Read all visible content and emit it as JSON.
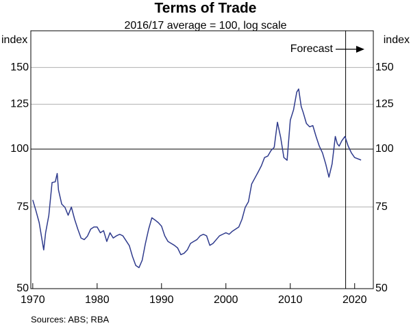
{
  "chart_data": {
    "type": "line",
    "title": "Terms of Trade",
    "subtitle": "2016/17 average = 100, log scale",
    "y_label": "index",
    "y2_label": "index",
    "source": "Sources: ABS; RBA",
    "annotation": "Forecast",
    "forecast_x": 2018.6,
    "reference_line": 100,
    "log_scale": true,
    "grid": true,
    "xlim": [
      1969.7,
      2022.9
    ],
    "xticks": [
      1970,
      1980,
      1990,
      2000,
      2010,
      2020
    ],
    "ylim": [
      50,
      180
    ],
    "yticks": [
      50,
      75,
      100,
      125,
      150
    ],
    "series": [
      {
        "name": "Terms of Trade",
        "color": "#2e3a8c",
        "x": [
          1970,
          1970.5,
          1971,
          1971.7,
          1972,
          1972.5,
          1973,
          1973.5,
          1973.8,
          1974,
          1974.5,
          1975,
          1975.5,
          1976,
          1976.5,
          1977,
          1977.5,
          1978,
          1978.5,
          1979,
          1979.5,
          1980,
          1980.5,
          1981,
          1981.5,
          1982,
          1982.5,
          1983,
          1983.5,
          1984,
          1985,
          1985.5,
          1986,
          1986.5,
          1987,
          1987.5,
          1988,
          1988.5,
          1989,
          1989.5,
          1990,
          1990.5,
          1991,
          1991.5,
          1992,
          1992.5,
          1993,
          1993.5,
          1994,
          1994.5,
          1995,
          1995.5,
          1996,
          1996.5,
          1997,
          1997.5,
          1998,
          1998.5,
          1999,
          1999.5,
          2000,
          2000.5,
          2001,
          2001.5,
          2002,
          2002.5,
          2003,
          2003.5,
          2004,
          2004.5,
          2005,
          2005.5,
          2006,
          2006.5,
          2007,
          2007.5,
          2008,
          2008.5,
          2009,
          2009.5,
          2010,
          2010.5,
          2011,
          2011.3,
          2011.7,
          2012,
          2012.5,
          2013,
          2013.5,
          2014,
          2014.5,
          2015,
          2015.5,
          2016,
          2016.5,
          2017,
          2017.3,
          2017.6,
          2018,
          2018.5,
          2019,
          2019.5,
          2020,
          2021
        ],
        "values": [
          77.7,
          73.6,
          69.4,
          60.6,
          66,
          72,
          84.7,
          85,
          88.6,
          81.6,
          76.1,
          74.9,
          72,
          75,
          70.6,
          67.2,
          64.3,
          63.8,
          64.9,
          67.2,
          67.9,
          67.9,
          66,
          66.7,
          63.2,
          66,
          64.3,
          65,
          65.5,
          65,
          61.9,
          58.6,
          56.1,
          55.5,
          57.6,
          62.6,
          67.2,
          71.1,
          70.3,
          69.4,
          68.2,
          65,
          63.2,
          62.6,
          62,
          61.2,
          59.2,
          59.6,
          60.6,
          62.6,
          63.2,
          63.8,
          65,
          65.5,
          65,
          62,
          62.6,
          63.8,
          65,
          65.5,
          66,
          65.5,
          66.5,
          67.2,
          67.9,
          70.6,
          74.9,
          77,
          84.1,
          86.6,
          89.2,
          92,
          95.9,
          96.6,
          99.3,
          100.9,
          114.3,
          106,
          95.9,
          94.6,
          115.5,
          121.5,
          132.7,
          134.8,
          123.6,
          120,
          113.6,
          111.7,
          112.4,
          106.5,
          101.5,
          98.1,
          92.9,
          87,
          92.9,
          106.5,
          102.7,
          101.5,
          104.2,
          106.5,
          101.5,
          98.1,
          95.9,
          94.7
        ]
      }
    ]
  }
}
